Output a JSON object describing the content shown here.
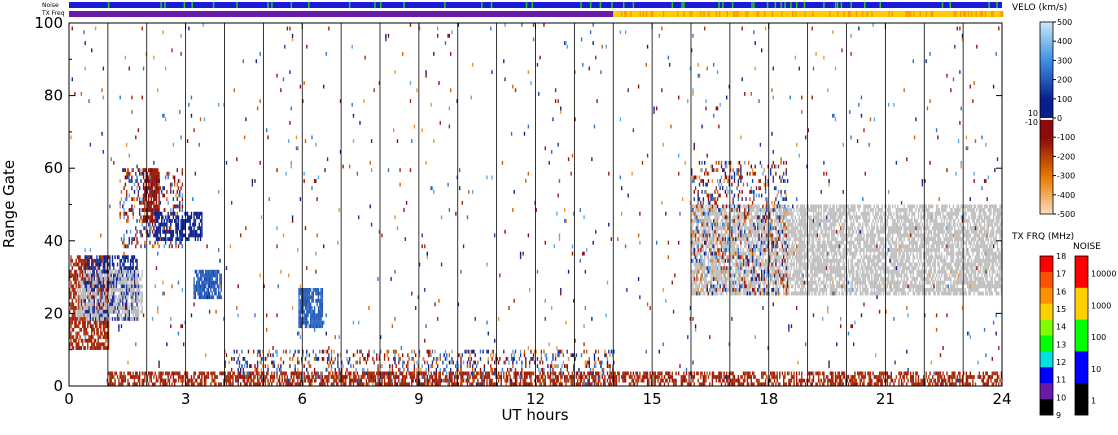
{
  "chart_data": {
    "type": "heatmap",
    "xlabel": "UT hours",
    "ylabel": "Range Gate",
    "xlim": [
      0,
      24
    ],
    "ylim": [
      0,
      100
    ],
    "x_ticks": [
      "0",
      "3",
      "6",
      "9",
      "12",
      "15",
      "18",
      "21",
      "24"
    ],
    "y_ticks": [
      "0",
      "20",
      "40",
      "60",
      "80",
      "100"
    ],
    "grid_x_hours": [
      1,
      2,
      3,
      4,
      5,
      6,
      7,
      8,
      9,
      10,
      11,
      12,
      13,
      14,
      15,
      16,
      17,
      18,
      19,
      20,
      21,
      22,
      23
    ],
    "strips": {
      "noise_label": "Noise",
      "txfreq_label": "TX Freq",
      "noise_color": "#1a1ad8",
      "noise_accent": "#22cc22",
      "txfreq_colors": [
        {
          "from": 0,
          "to": 14,
          "color": "#6a1aa8"
        },
        {
          "from": 14,
          "to": 24,
          "color": "#ffcc00"
        }
      ]
    },
    "velocity_colorbar": {
      "title": "VELO (km/s)",
      "ticks": [
        "500",
        "400",
        "300",
        "200",
        "100",
        "0",
        "-100",
        "-200",
        "-300",
        "-400",
        "-500"
      ],
      "side_labels": [
        "10",
        "-10"
      ],
      "stops": [
        {
          "v": 500,
          "color": "#c8e6fa"
        },
        {
          "v": 300,
          "color": "#3c8ee0"
        },
        {
          "v": 100,
          "color": "#0a1e8c"
        },
        {
          "v": 10,
          "color": "#0a1e8c"
        },
        {
          "v": 0,
          "color": "#ffffff"
        },
        {
          "v": -10,
          "color": "#8c0a0a"
        },
        {
          "v": -100,
          "color": "#8c0a0a"
        },
        {
          "v": -300,
          "color": "#e87800"
        },
        {
          "v": -500,
          "color": "#fde0c0"
        }
      ]
    },
    "txfreq_colorbar": {
      "title": "TX FRQ (MHz)",
      "ticks": [
        "18",
        "17",
        "16",
        "15",
        "14",
        "13",
        "12",
        "11",
        "10",
        "9"
      ],
      "colors": [
        "#ff0000",
        "#ff5000",
        "#ff9000",
        "#ffd000",
        "#80ff00",
        "#00ff00",
        "#00e0e0",
        "#0000ff",
        "#6a1aa8",
        "#000000"
      ]
    },
    "noise_colorbar": {
      "title": "NOISE",
      "ticks": [
        "10000",
        "1000",
        "100",
        "10",
        "1"
      ],
      "colors": [
        "#ff0000",
        "#ffd000",
        "#00ff00",
        "#0000ff",
        "#000000"
      ]
    },
    "ground_scatter_color": "#c0c0c0",
    "series": [
      {
        "x": [
          0.0,
          1.0
        ],
        "y": [
          10,
          36
        ],
        "velocity": -150,
        "density": 0.65
      },
      {
        "x": [
          0.4,
          1.8
        ],
        "y": [
          18,
          36
        ],
        "velocity": 120,
        "density": 0.55
      },
      {
        "x": [
          0.2,
          1.9
        ],
        "y": [
          18,
          32
        ],
        "velocity": "ground",
        "density": 0.5
      },
      {
        "x": [
          1.3,
          2.9
        ],
        "y": [
          38,
          60
        ],
        "velocity": "mixed",
        "density": 0.25
      },
      {
        "x": [
          1.9,
          2.3
        ],
        "y": [
          45,
          60
        ],
        "velocity": -120,
        "density": 0.7
      },
      {
        "x": [
          2.2,
          3.4
        ],
        "y": [
          40,
          48
        ],
        "velocity": 90,
        "density": 0.6
      },
      {
        "x": [
          3.2,
          3.9
        ],
        "y": [
          24,
          32
        ],
        "velocity": 200,
        "density": 0.8
      },
      {
        "x": [
          5.9,
          6.5
        ],
        "y": [
          16,
          27
        ],
        "velocity": 220,
        "density": 0.8
      },
      {
        "x": [
          4.0,
          14.0
        ],
        "y": [
          0,
          10
        ],
        "velocity": "mixed",
        "density": 0.25
      },
      {
        "x": [
          1.0,
          24.0
        ],
        "y": [
          0,
          4
        ],
        "velocity": -150,
        "density": 0.55
      },
      {
        "x": [
          16.0,
          24.0
        ],
        "y": [
          25,
          50
        ],
        "velocity": "ground",
        "density": 0.7
      },
      {
        "x": [
          16.0,
          18.5
        ],
        "y": [
          25,
          62
        ],
        "velocity": "mixed",
        "density": 0.22
      },
      {
        "x": [
          0.0,
          24.0
        ],
        "y": [
          0,
          100
        ],
        "velocity": "mixed",
        "density": 0.012
      }
    ]
  }
}
